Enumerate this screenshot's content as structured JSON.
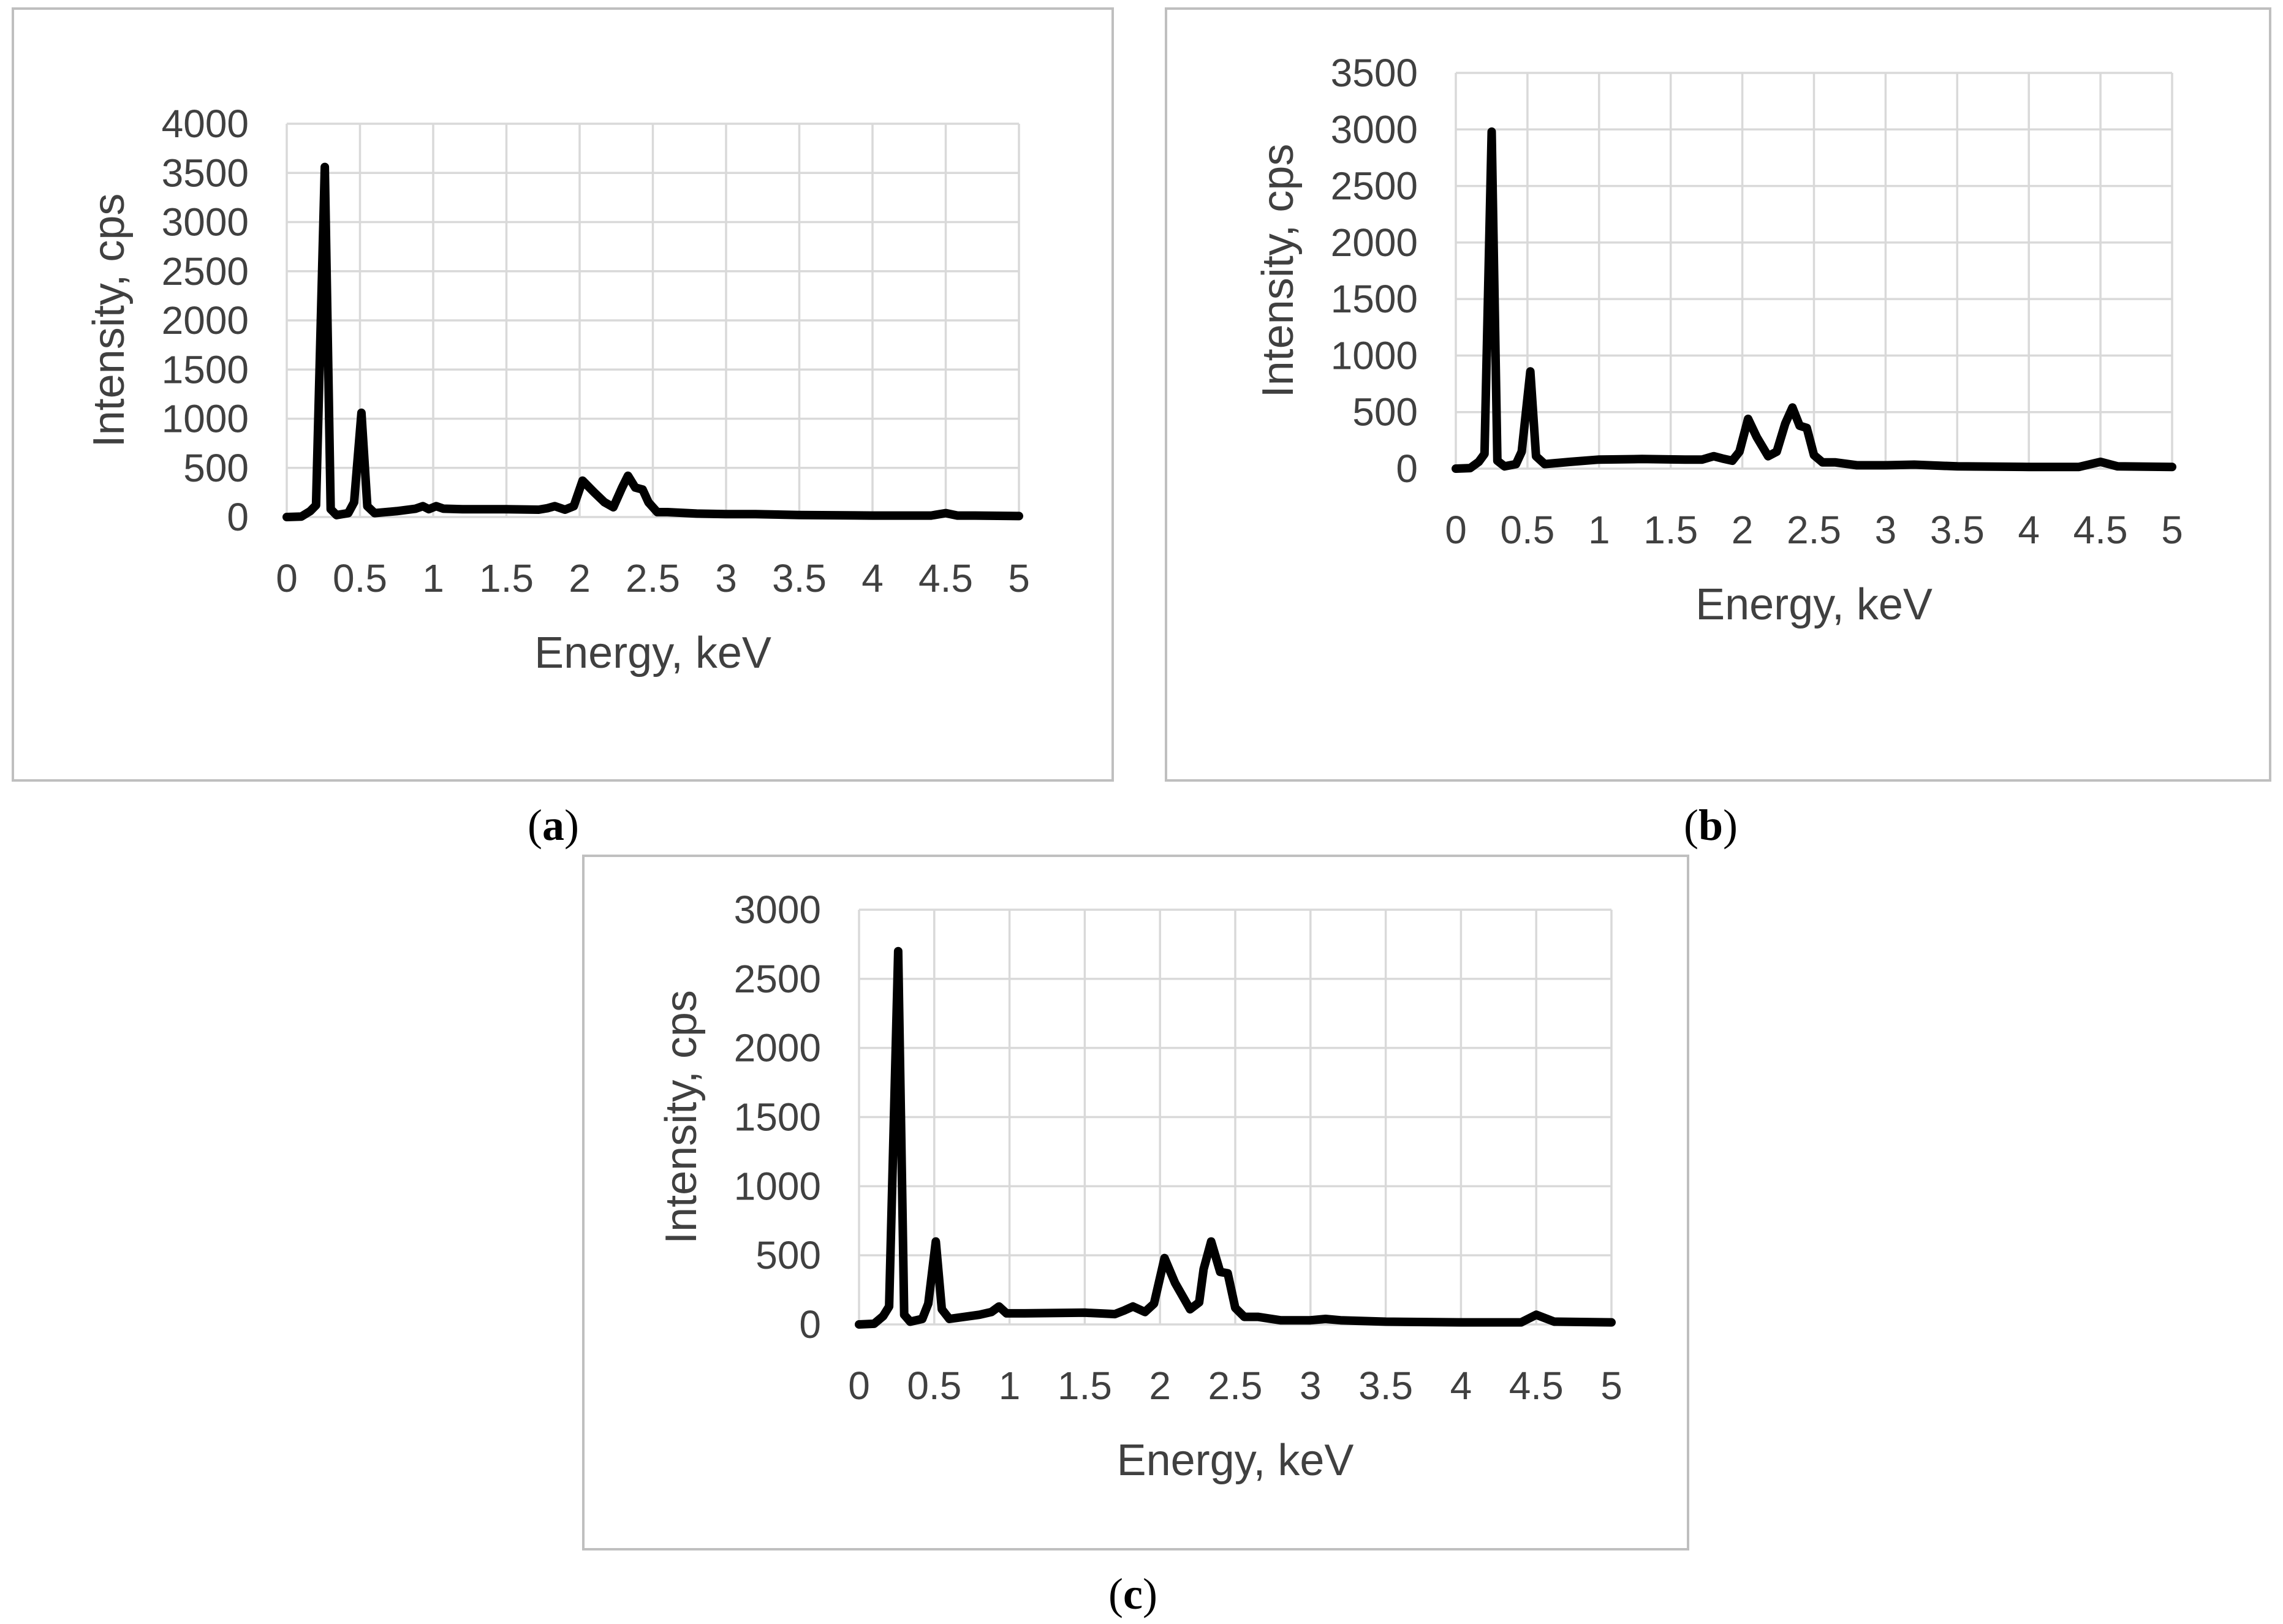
{
  "figure": {
    "background": "#ffffff",
    "panel_border_color": "#bfbfbf",
    "gridline_color": "#d9d9d9",
    "text_color": "#404040",
    "line_color": "#000000"
  },
  "chart_data": [
    {
      "type": "line",
      "caption": {
        "open": "(",
        "label": "a",
        "close": ")"
      },
      "xlabel": "Energy, keV",
      "ylabel": "Intensity, cps",
      "xlim": [
        0,
        5
      ],
      "ylim": [
        0,
        4000
      ],
      "xticks": [
        0,
        0.5,
        1,
        1.5,
        2,
        2.5,
        3,
        3.5,
        4,
        4.5,
        5
      ],
      "xtick_labels": [
        "0",
        "0.5",
        "1",
        "1.5",
        "2",
        "2.5",
        "3",
        "3.5",
        "4",
        "4.5",
        "5"
      ],
      "yticks": [
        0,
        500,
        1000,
        1500,
        2000,
        2500,
        3000,
        3500,
        4000
      ],
      "ytick_labels": [
        "0",
        "500",
        "1000",
        "1500",
        "2000",
        "2500",
        "3000",
        "3500",
        "4000"
      ],
      "grid": true,
      "series": [
        {
          "color": "#000000",
          "x": [
            0,
            0.1,
            0.16,
            0.2,
            0.26,
            0.3,
            0.34,
            0.42,
            0.46,
            0.51,
            0.55,
            0.6,
            0.75,
            0.88,
            0.93,
            0.97,
            1.02,
            1.07,
            1.2,
            1.5,
            1.72,
            1.78,
            1.83,
            1.9,
            1.96,
            2.02,
            2.1,
            2.17,
            2.23,
            2.29,
            2.33,
            2.38,
            2.43,
            2.47,
            2.53,
            2.6,
            2.8,
            3.0,
            3.2,
            3.5,
            4.0,
            4.4,
            4.5,
            4.58,
            4.7,
            5.0
          ],
          "y": [
            0,
            5,
            60,
            120,
            3560,
            80,
            20,
            40,
            150,
            1060,
            110,
            40,
            60,
            85,
            110,
            80,
            110,
            85,
            80,
            80,
            75,
            90,
            110,
            75,
            110,
            370,
            250,
            150,
            100,
            300,
            420,
            300,
            280,
            150,
            50,
            50,
            35,
            30,
            30,
            20,
            15,
            15,
            40,
            15,
            15,
            10
          ]
        }
      ]
    },
    {
      "type": "line",
      "caption": {
        "open": "(",
        "label": "b",
        "close": ")"
      },
      "xlabel": "Energy, keV",
      "ylabel": "Intensity, cps",
      "xlim": [
        0,
        5
      ],
      "ylim": [
        0,
        3500
      ],
      "xticks": [
        0,
        0.5,
        1,
        1.5,
        2,
        2.5,
        3,
        3.5,
        4,
        4.5,
        5
      ],
      "xtick_labels": [
        "0",
        "0.5",
        "1",
        "1.5",
        "2",
        "2.5",
        "3",
        "3.5",
        "4",
        "4.5",
        "5"
      ],
      "yticks": [
        0,
        500,
        1000,
        1500,
        2000,
        2500,
        3000,
        3500
      ],
      "ytick_labels": [
        "0",
        "500",
        "1000",
        "1500",
        "2000",
        "2500",
        "3000",
        "3500"
      ],
      "grid": true,
      "series": [
        {
          "color": "#000000",
          "x": [
            0,
            0.1,
            0.16,
            0.2,
            0.25,
            0.29,
            0.34,
            0.42,
            0.46,
            0.52,
            0.56,
            0.62,
            0.8,
            1.0,
            1.3,
            1.6,
            1.72,
            1.8,
            1.86,
            1.93,
            1.98,
            2.04,
            2.1,
            2.18,
            2.24,
            2.3,
            2.35,
            2.4,
            2.45,
            2.5,
            2.56,
            2.65,
            2.8,
            3.0,
            3.2,
            3.5,
            4.0,
            4.35,
            4.5,
            4.62,
            5.0
          ],
          "y": [
            0,
            5,
            60,
            130,
            2980,
            70,
            20,
            40,
            150,
            860,
            110,
            40,
            60,
            80,
            85,
            80,
            80,
            110,
            90,
            70,
            150,
            440,
            280,
            110,
            150,
            400,
            540,
            380,
            360,
            120,
            55,
            55,
            30,
            30,
            35,
            20,
            15,
            15,
            60,
            20,
            15
          ]
        }
      ]
    },
    {
      "type": "line",
      "caption": {
        "open": "(",
        "label": "c",
        "close": ")"
      },
      "xlabel": "Energy, keV",
      "ylabel": "Intensity, cps",
      "xlim": [
        0,
        5
      ],
      "ylim": [
        0,
        3000
      ],
      "xticks": [
        0,
        0.5,
        1,
        1.5,
        2,
        2.5,
        3,
        3.5,
        4,
        4.5,
        5
      ],
      "xtick_labels": [
        "0",
        "0.5",
        "1",
        "1.5",
        "2",
        "2.5",
        "3",
        "3.5",
        "4",
        "4.5",
        "5"
      ],
      "yticks": [
        0,
        500,
        1000,
        1500,
        2000,
        2500,
        3000
      ],
      "ytick_labels": [
        "0",
        "500",
        "1000",
        "1500",
        "2000",
        "2500",
        "3000"
      ],
      "grid": true,
      "series": [
        {
          "color": "#000000",
          "x": [
            0,
            0.1,
            0.16,
            0.2,
            0.26,
            0.3,
            0.34,
            0.42,
            0.46,
            0.51,
            0.55,
            0.6,
            0.8,
            0.88,
            0.93,
            0.98,
            1.1,
            1.5,
            1.7,
            1.76,
            1.82,
            1.9,
            1.96,
            2.03,
            2.1,
            2.2,
            2.26,
            2.29,
            2.34,
            2.4,
            2.45,
            2.5,
            2.56,
            2.65,
            2.8,
            3.0,
            3.1,
            3.2,
            3.5,
            4.0,
            4.4,
            4.5,
            4.62,
            5.0
          ],
          "y": [
            0,
            5,
            60,
            130,
            2700,
            70,
            20,
            40,
            150,
            600,
            110,
            40,
            70,
            90,
            130,
            80,
            80,
            85,
            75,
            100,
            130,
            90,
            150,
            480,
            300,
            110,
            160,
            400,
            600,
            380,
            370,
            120,
            55,
            55,
            30,
            30,
            40,
            30,
            20,
            15,
            15,
            70,
            20,
            15
          ]
        }
      ]
    }
  ]
}
